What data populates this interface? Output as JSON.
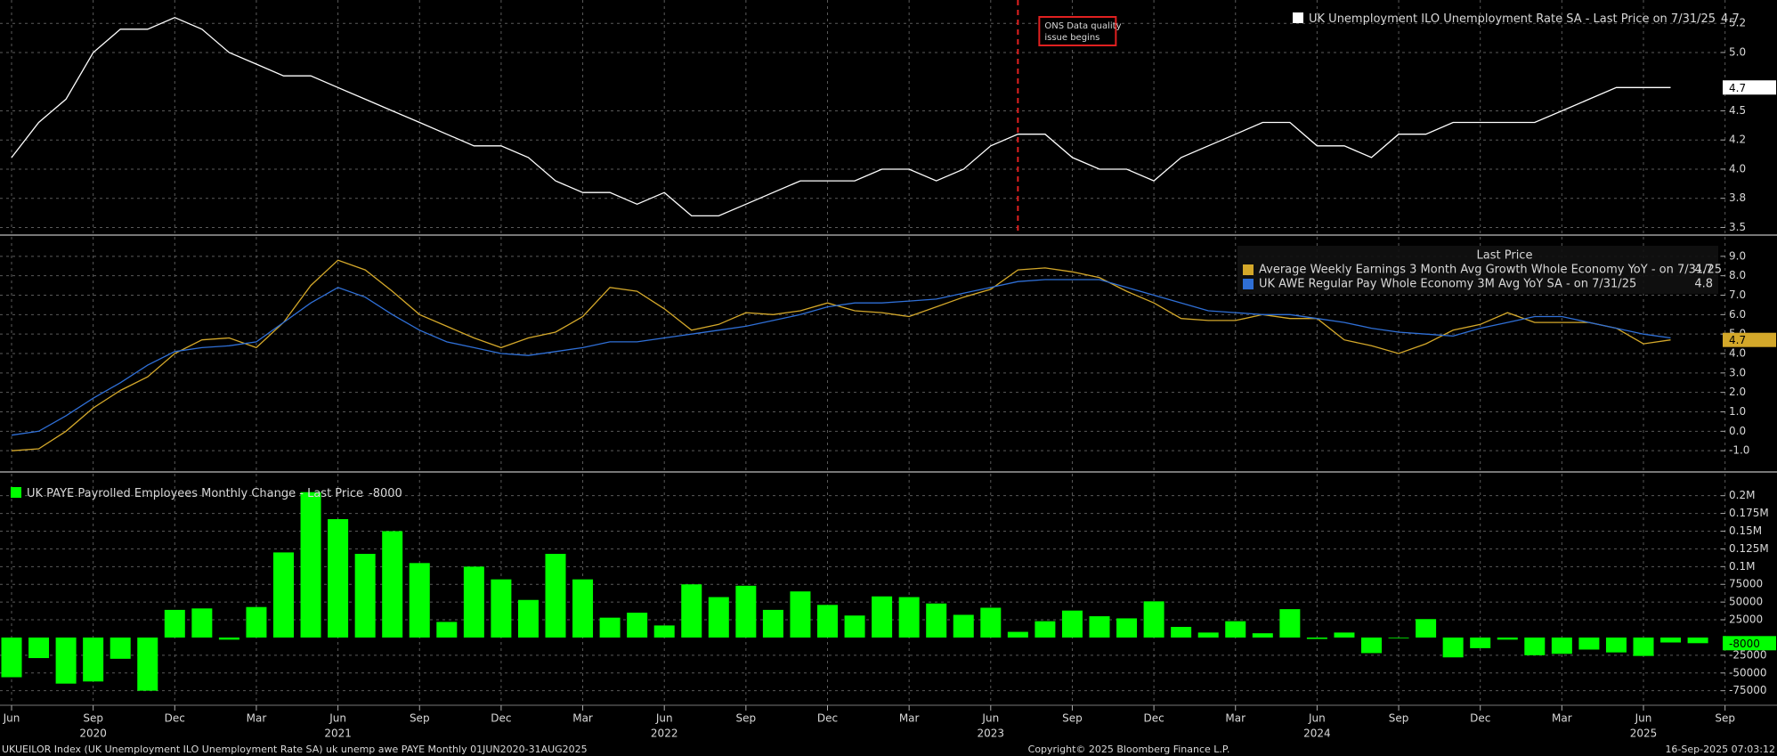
{
  "chart_data": [
    {
      "type": "line",
      "series": [
        {
          "name": "UK Unemployment ILO Unemployment Rate SA - Last Price on 7/31/25",
          "color": "#ffffff",
          "values": [
            4.1,
            4.4,
            4.6,
            5.0,
            5.2,
            5.2,
            5.3,
            5.2,
            5.0,
            4.9,
            4.8,
            4.8,
            4.7,
            4.6,
            4.5,
            4.4,
            4.3,
            4.2,
            4.2,
            4.1,
            3.9,
            3.8,
            3.8,
            3.7,
            3.8,
            3.6,
            3.6,
            3.7,
            3.8,
            3.9,
            3.9,
            3.9,
            4.0,
            4.0,
            3.9,
            4.0,
            4.2,
            4.3,
            4.3,
            4.1,
            4.0,
            4.0,
            3.9,
            4.1,
            4.2,
            4.3,
            4.4,
            4.4,
            4.2,
            4.2,
            4.1,
            4.3,
            4.3,
            4.4,
            4.4,
            4.4,
            4.4,
            4.5,
            4.6,
            4.7,
            4.7,
            4.7,
            null,
            null
          ]
        }
      ],
      "ylim": [
        3.45,
        5.45
      ],
      "yticks": [
        3.5,
        {
          "value": 3.75,
          "label": "3.8"
        },
        {
          "value": 4.0,
          "label": "4.0"
        },
        {
          "value": 4.25,
          "label": "4.2"
        },
        4.5,
        {
          "value": 5.0,
          "label": "5.0"
        },
        {
          "value": 5.25,
          "label": "5.2"
        }
      ],
      "annotation": [
        "ONS Data quality",
        "issue begins"
      ],
      "grid": true
    },
    {
      "type": "line",
      "legend_title": "Last Price",
      "series": [
        {
          "name": "Average Weekly Earnings 3 Month Avg Growth Whole Economy YoY -  on 7/31/25",
          "color": "#d4a82a",
          "values": [
            -1.0,
            -0.9,
            0.0,
            1.2,
            2.1,
            2.8,
            4.0,
            4.7,
            4.8,
            4.3,
            5.6,
            7.5,
            8.8,
            8.3,
            7.2,
            6.0,
            5.4,
            4.8,
            4.3,
            4.8,
            5.1,
            5.9,
            7.4,
            7.2,
            6.3,
            5.2,
            5.5,
            6.1,
            6.0,
            6.2,
            6.6,
            6.2,
            6.1,
            5.9,
            6.4,
            6.9,
            7.3,
            8.3,
            8.4,
            8.2,
            7.9,
            7.2,
            6.6,
            5.8,
            5.7,
            5.7,
            6.0,
            5.8,
            5.8,
            4.7,
            4.4,
            4.0,
            4.5,
            5.2,
            5.5,
            6.1,
            5.6,
            5.6,
            5.6,
            5.3,
            4.5,
            4.7,
            null,
            null
          ]
        },
        {
          "name": "UK AWE Regular Pay Whole Economy 3M Avg YoY SA -  on 7/31/25",
          "color": "#2f6fd6",
          "values": [
            -0.2,
            0.0,
            0.8,
            1.7,
            2.5,
            3.4,
            4.1,
            4.3,
            4.4,
            4.6,
            5.6,
            6.6,
            7.4,
            6.9,
            6.0,
            5.2,
            4.6,
            4.3,
            4.0,
            3.9,
            4.1,
            4.3,
            4.6,
            4.6,
            4.8,
            5.0,
            5.2,
            5.4,
            5.7,
            6.0,
            6.4,
            6.6,
            6.6,
            6.7,
            6.8,
            7.1,
            7.4,
            7.7,
            7.8,
            7.8,
            7.8,
            7.4,
            7.0,
            6.6,
            6.2,
            6.1,
            6.0,
            6.0,
            5.8,
            5.6,
            5.3,
            5.1,
            5.0,
            4.9,
            5.3,
            5.6,
            5.9,
            5.9,
            5.6,
            5.3,
            5.0,
            4.8,
            null,
            null
          ]
        }
      ],
      "ylim": [
        -2.0,
        10.0
      ],
      "yticks": [
        {
          "value": -1,
          "label": "-1.0"
        },
        {
          "value": 0,
          "label": "0.0"
        },
        {
          "value": 1,
          "label": "1.0"
        },
        {
          "value": 2,
          "label": "2.0"
        },
        {
          "value": 3,
          "label": "3.0"
        },
        {
          "value": 4,
          "label": "4.0"
        },
        {
          "value": 5,
          "label": "5.0"
        },
        {
          "value": 6,
          "label": "6.0"
        },
        {
          "value": 7,
          "label": "7.0"
        },
        {
          "value": 8,
          "label": "8.0"
        },
        {
          "value": 9,
          "label": "9.0"
        }
      ],
      "grid": true
    },
    {
      "type": "bar",
      "categories": [
        "Jun",
        null,
        null,
        "Sep",
        null,
        null,
        "Dec",
        null,
        null,
        "Mar",
        null,
        null,
        "Jun",
        null,
        null,
        "Sep",
        null,
        null,
        "Dec",
        null,
        null,
        "Mar",
        null,
        null,
        "Jun",
        null,
        null,
        "Sep",
        null,
        null,
        "Dec",
        null,
        null,
        "Mar",
        null,
        null,
        "Jun",
        null,
        null,
        "Sep",
        null,
        null,
        "Dec",
        null,
        null,
        "Mar",
        null,
        null,
        "Jun",
        null,
        null,
        "Sep",
        null,
        null,
        "Dec",
        null,
        null,
        "Mar",
        null,
        null,
        "Jun",
        null,
        null,
        "Sep"
      ],
      "year_labels": [
        null,
        null,
        null,
        "2020",
        null,
        null,
        null,
        null,
        null,
        null,
        null,
        null,
        "2021",
        null,
        null,
        null,
        null,
        null,
        null,
        null,
        null,
        null,
        null,
        null,
        "2022",
        null,
        null,
        null,
        null,
        null,
        null,
        null,
        null,
        null,
        null,
        null,
        "2023",
        null,
        null,
        null,
        null,
        null,
        null,
        null,
        null,
        null,
        null,
        null,
        "2024",
        null,
        null,
        null,
        null,
        null,
        null,
        null,
        null,
        null,
        null,
        null,
        "2025",
        null,
        null,
        null
      ],
      "series": [
        {
          "name": "UK PAYE Payrolled Employees Monthly Change - Last Price",
          "color": "#00ff00",
          "values": [
            -56000,
            -29000,
            -65000,
            -62000,
            -30000,
            -75000,
            39000,
            41000,
            -3000,
            43000,
            120000,
            205000,
            167000,
            118000,
            150000,
            105000,
            22000,
            100000,
            82000,
            53000,
            118000,
            82000,
            28000,
            35000,
            17000,
            75000,
            57000,
            73000,
            39000,
            65000,
            46000,
            31000,
            58000,
            57000,
            48000,
            32000,
            42000,
            8000,
            23000,
            38000,
            30000,
            27000,
            51000,
            15000,
            7000,
            23000,
            6000,
            40000,
            -2000,
            7000,
            -22000,
            -1000,
            26000,
            -28000,
            -15000,
            -3000,
            -25000,
            -23000,
            -17000,
            -21000,
            -26000,
            -7000,
            -8000,
            null
          ]
        }
      ],
      "ylim": [
        -93000,
        231000
      ],
      "yticks": [
        -75000,
        -50000,
        -25000,
        25000,
        50000,
        75000,
        {
          "value": 100000,
          "label": "0.1M"
        },
        {
          "value": 125000,
          "label": "0.125M"
        },
        {
          "value": 150000,
          "label": "0.15M"
        },
        {
          "value": 175000,
          "label": "0.175M"
        },
        {
          "value": 200000,
          "label": "0.2M"
        }
      ],
      "grid": true
    }
  ],
  "footer": {
    "left": "UKUEILOR Index (UK Unemployment ILO Unemployment Rate SA) uk unemp awe PAYE  Monthly 01JUN2020-31AUG2025",
    "center": "Copyright© 2025 Bloomberg Finance L.P.",
    "right": "16-Sep-2025 07:03:12"
  }
}
